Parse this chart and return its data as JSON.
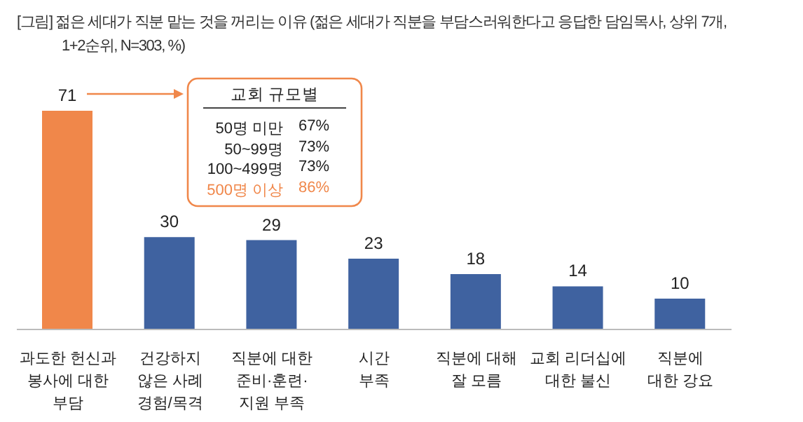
{
  "chart_data": {
    "type": "bar",
    "title": "[그림] 젊은 세대가 직분 맡는 것을 꺼리는 이유 (젊은 세대가 직분을 부담스러워한다고 응답한 담임목사, 상위 7개, 1+2순위, N=303, %)",
    "categories": [
      "과도한 헌신과\n봉사에 대한\n부담",
      "건강하지\n않은 사례\n경험/목격",
      "직분에 대한\n준비·훈련·\n지원 부족",
      "시간\n부족",
      "직분에 대해\n잘 모름",
      "교회 리더십에\n대한 불신",
      "직분에\n대한 강요"
    ],
    "values": [
      71,
      30,
      29,
      23,
      18,
      14,
      10
    ],
    "colors": [
      "#f0874a",
      "#3f62a0",
      "#3f62a0",
      "#3f62a0",
      "#3f62a0",
      "#3f62a0",
      "#3f62a0"
    ],
    "data_labels": true,
    "grid": false,
    "legend": false,
    "annotations": [
      "교회 규모별",
      "50명 미만",
      "67%",
      "50~99명",
      "73%",
      "100~499명",
      "73%",
      "500명 이상",
      "86%"
    ]
  }
}
